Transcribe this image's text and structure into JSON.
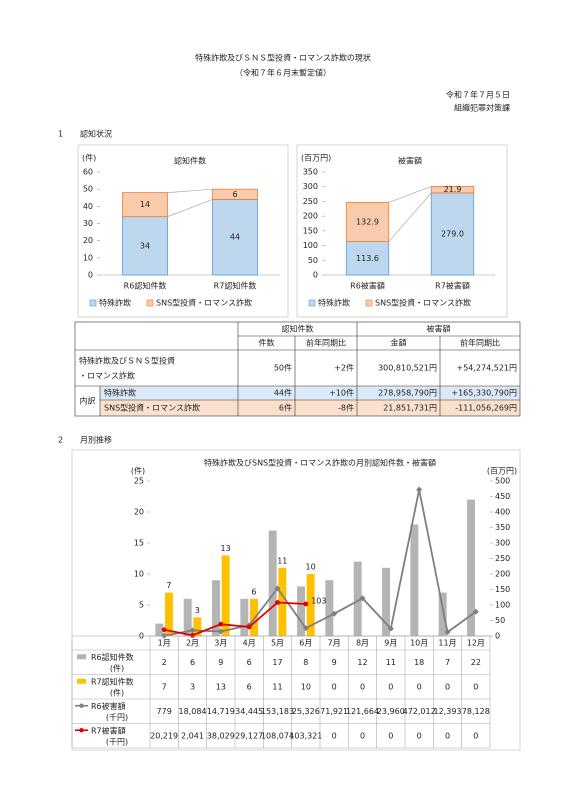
{
  "header": {
    "title": "特殊詐欺及びＳＮＳ型投資・ロマンス詐欺の現状",
    "subtitle": "（令和７年６月末暫定値）",
    "date": "令和７年７月５日",
    "department": "組織犯罪対策課"
  },
  "sections": [
    {
      "number": "1",
      "title": "認知状況"
    },
    {
      "number": "2",
      "title": "月別推移"
    }
  ],
  "chart_data": [
    {
      "type": "stacked_bar",
      "title": "認知件数",
      "y_unit": "(件)",
      "categories": [
        "R6認知件数",
        "R7認知件数"
      ],
      "series": [
        {
          "name": "特殊詐欺",
          "color": "#bdd7ee",
          "values": [
            34,
            44
          ]
        },
        {
          "name": "SNS型投資・ロマンス詐欺",
          "color": "#f8cbad",
          "values": [
            14,
            6
          ]
        }
      ],
      "ylim": [
        0,
        60
      ],
      "yticks": [
        0,
        10,
        20,
        30,
        40,
        50,
        60
      ],
      "grid": false
    },
    {
      "type": "stacked_bar",
      "title": "被害額",
      "y_unit": "(百万円)",
      "categories": [
        "R6被害額",
        "R7被害額"
      ],
      "series": [
        {
          "name": "特殊詐欺",
          "color": "#bdd7ee",
          "values": [
            113.6,
            279.0
          ],
          "value_labels": [
            "113.6",
            "279.0"
          ]
        },
        {
          "name": "SNS型投資・ロマンス詐欺",
          "color": "#f8cbad",
          "values": [
            132.9,
            21.9
          ],
          "value_labels": [
            "132.9",
            "21.9"
          ]
        }
      ],
      "ylim": [
        0,
        350
      ],
      "yticks": [
        0,
        50,
        100,
        150,
        200,
        250,
        300,
        350
      ],
      "grid": false
    },
    {
      "type": "bar_line",
      "title": "特殊詐欺及びSNS型投資・ロマンス詐欺の月別認知件数・被害額",
      "y_unit": "(件)",
      "y2_unit": "(百万円)",
      "categories": [
        "1月",
        "2月",
        "3月",
        "4月",
        "5月",
        "6月",
        "7月",
        "8月",
        "9月",
        "10月",
        "11月",
        "12月"
      ],
      "series": [
        {
          "name": "R6認知件数",
          "kind": "bar",
          "color": "#b4b4b4",
          "values": [
            2,
            6,
            9,
            6,
            17,
            8,
            9,
            12,
            11,
            18,
            7,
            22
          ]
        },
        {
          "name": "R7認知件数",
          "kind": "bar",
          "color": "#ffc000",
          "data_labels": true,
          "values": [
            7,
            3,
            13,
            6,
            11,
            10,
            null,
            null,
            null,
            null,
            null,
            null
          ]
        },
        {
          "name": "R6被害額",
          "kind": "line",
          "axis": "y2",
          "color": "#7f7f7f",
          "values": [
            0.779,
            18.084,
            14.719,
            34.445,
            153.183,
            25.326,
            71.921,
            121.664,
            23.96,
            472.012,
            12.393,
            78.128
          ]
        },
        {
          "name": "R7被害額",
          "kind": "line",
          "axis": "y2",
          "color": "#e00000",
          "values": [
            20.219,
            2.041,
            38.029,
            29.127,
            108.074,
            103.321,
            null,
            null,
            null,
            null,
            null,
            null
          ]
        }
      ],
      "annotation": "103",
      "ylim": [
        0,
        25
      ],
      "yticks": [
        0,
        5,
        10,
        15,
        20,
        25
      ],
      "y2lim": [
        0,
        500
      ],
      "y2ticks": [
        0,
        50,
        100,
        150,
        200,
        250,
        300,
        350,
        400,
        450,
        500
      ],
      "grid": false
    }
  ],
  "summary_table": {
    "group_headers": [
      "認知件数",
      "被害額"
    ],
    "sub_headers": [
      "件数",
      "前年同期比",
      "金額",
      "前年同期比"
    ],
    "breakdown_label": "内訳",
    "rows": [
      {
        "label": [
          "特殊詐欺及びＳＮＳ型投資",
          "・ロマンス詐欺"
        ],
        "cells": [
          "50件",
          "+2件",
          "300,810,521円",
          "+54,274,521円"
        ]
      },
      {
        "label": [
          "特殊詐欺"
        ],
        "cells": [
          "44件",
          "+10件",
          "278,958,790円",
          "+165,330,790円"
        ]
      },
      {
        "label": [
          "SNS型投資・ロマンス詐欺"
        ],
        "cells": [
          "6件",
          "-8件",
          "21,851,731円",
          "-111,056,269円"
        ]
      }
    ]
  },
  "monthly_table": {
    "rows": [
      {
        "unit": "(件)",
        "cells": [
          "2",
          "6",
          "9",
          "6",
          "17",
          "8",
          "9",
          "12",
          "11",
          "18",
          "7",
          "22"
        ]
      },
      {
        "unit": "(件)",
        "cells": [
          "7",
          "3",
          "13",
          "6",
          "11",
          "10",
          "0",
          "0",
          "0",
          "0",
          "0",
          "0"
        ]
      },
      {
        "unit": "(千円)",
        "cells": [
          "779",
          "18,084",
          "14,719",
          "34,445",
          "153,183",
          "25,326",
          "71,921",
          "121,664",
          "23,960",
          "472,012",
          "12,393",
          "78,128"
        ]
      },
      {
        "unit": "(千円)",
        "cells": [
          "20,219",
          "2,041",
          "38,029",
          "29,127",
          "108,074",
          "103,321",
          "0",
          "0",
          "0",
          "0",
          "0",
          "0"
        ]
      }
    ]
  }
}
